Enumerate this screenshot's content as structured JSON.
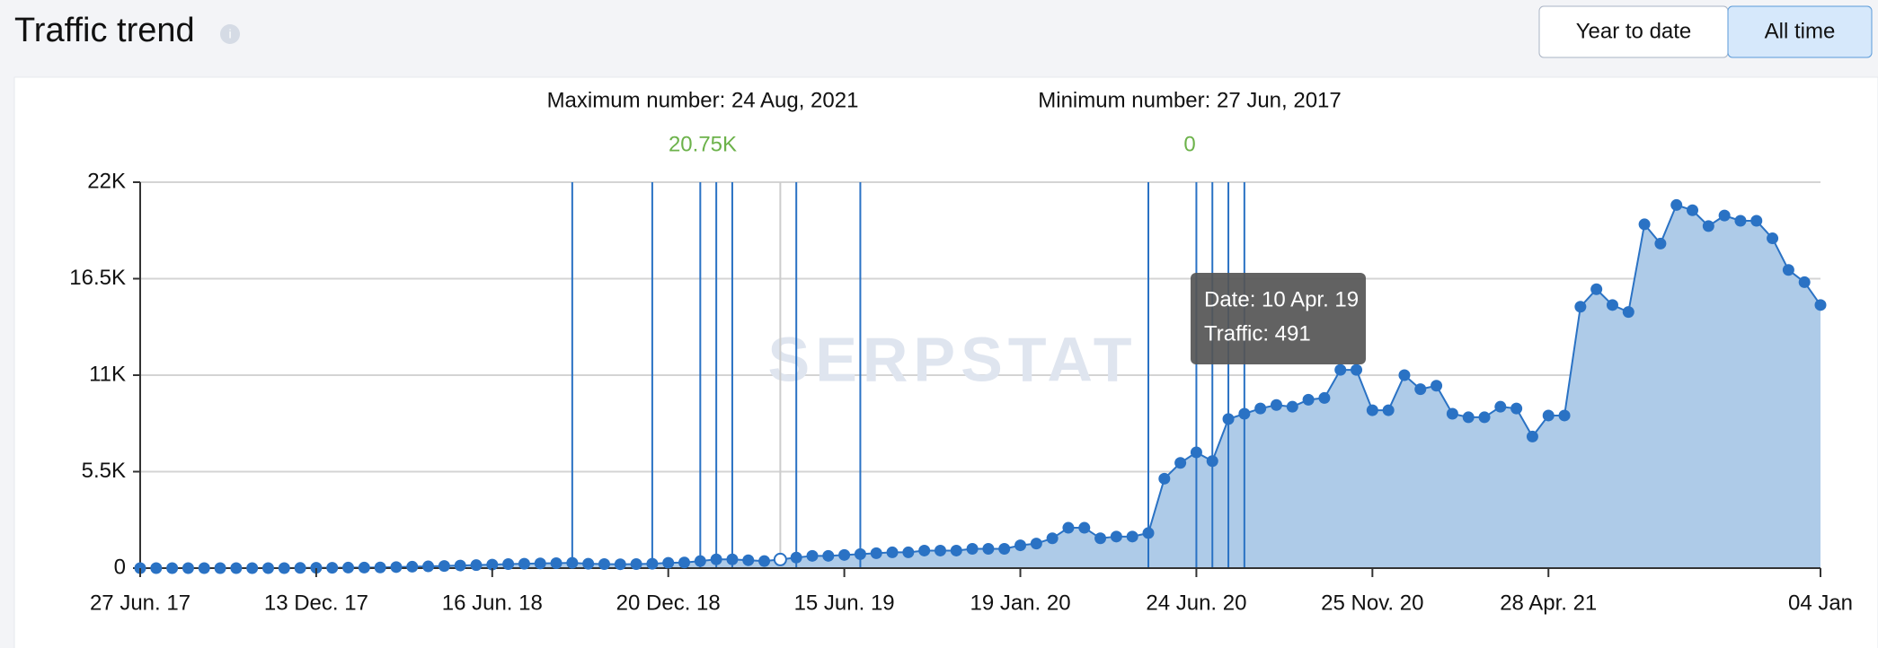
{
  "header": {
    "title": "Traffic trend",
    "buttons": [
      "Year to date",
      "All time"
    ],
    "active_button": 1
  },
  "chart_data": {
    "type": "area",
    "stats": [
      {
        "label": "Maximum number: 24 Aug, 2021",
        "value_label": "20.75K"
      },
      {
        "label": "Minimum number: 27 Jun, 2017",
        "value_label": "0"
      }
    ],
    "watermark": "SERPSTAT",
    "tooltip": {
      "index": 40,
      "lines": [
        "Date: 10 Apr. 19",
        "Traffic: 491"
      ]
    },
    "event_markers": [
      27,
      32,
      35,
      36,
      37,
      41,
      45,
      63,
      66,
      67,
      68,
      69
    ],
    "categories": [
      "27 Jun. 17",
      null,
      null,
      null,
      null,
      null,
      null,
      null,
      null,
      null,
      null,
      "13 Dec. 17",
      null,
      null,
      null,
      null,
      null,
      null,
      null,
      null,
      null,
      null,
      "16 Jun. 18",
      null,
      null,
      null,
      null,
      null,
      null,
      null,
      null,
      null,
      null,
      "20 Dec. 18",
      null,
      null,
      null,
      null,
      null,
      null,
      null,
      null,
      null,
      null,
      "15 Jun. 19",
      null,
      null,
      null,
      null,
      null,
      null,
      null,
      null,
      null,
      null,
      "19 Jan. 20",
      null,
      null,
      null,
      null,
      null,
      null,
      null,
      null,
      null,
      null,
      "24 Jun. 20",
      null,
      null,
      null,
      null,
      null,
      null,
      null,
      null,
      null,
      null,
      "25 Nov. 20",
      null,
      null,
      null,
      null,
      null,
      null,
      null,
      null,
      null,
      null,
      "28 Apr. 21",
      null,
      null,
      null,
      null,
      null,
      null,
      null,
      null,
      null,
      null,
      null,
      null,
      null,
      null,
      null,
      null,
      "04 Jan"
    ],
    "values": [
      0,
      0,
      0,
      0,
      0,
      0,
      0,
      0,
      0,
      0,
      10,
      20,
      20,
      30,
      30,
      40,
      60,
      80,
      100,
      120,
      150,
      170,
      200,
      230,
      250,
      270,
      280,
      300,
      250,
      230,
      220,
      230,
      250,
      300,
      320,
      400,
      500,
      500,
      450,
      400,
      491,
      600,
      700,
      700,
      750,
      800,
      850,
      900,
      900,
      1000,
      1000,
      1000,
      1100,
      1100,
      1100,
      1300,
      1400,
      1700,
      2300,
      2300,
      1700,
      1800,
      1800,
      2000,
      5100,
      6000,
      6600,
      6100,
      8500,
      8800,
      9100,
      9300,
      9200,
      9600,
      9700,
      11300,
      11300,
      9000,
      9000,
      11000,
      10200,
      10400,
      8800,
      8600,
      8600,
      9200,
      9100,
      7500,
      8700,
      8700,
      14900,
      15900,
      15000,
      14600,
      19600,
      18500,
      20700,
      20400,
      19500,
      20100,
      19800,
      19800,
      18800,
      17000,
      16300,
      15000
    ],
    "color": "#2a72c4",
    "fill_color": "#aecbe8",
    "ylim": [
      0,
      22000
    ],
    "yticks": [
      0,
      {
        "value": 5500,
        "label": "5.5K"
      },
      {
        "value": 11000,
        "label": "11K"
      },
      {
        "value": 16500,
        "label": "16.5K"
      },
      {
        "value": 22000,
        "label": "22K"
      }
    ],
    "grid": true
  }
}
